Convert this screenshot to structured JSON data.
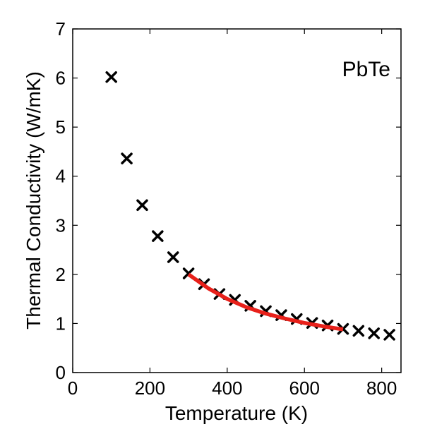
{
  "chart_data": {
    "type": "scatter",
    "title": "",
    "xlabel": "Temperature (K)",
    "ylabel": "Thermal Conductivity (W/mK)",
    "xlim": [
      0,
      850
    ],
    "ylim": [
      0,
      7
    ],
    "x_ticks": [
      0,
      200,
      400,
      600,
      800
    ],
    "y_ticks": [
      0,
      1,
      2,
      3,
      4,
      5,
      6,
      7
    ],
    "grid": false,
    "annotation": "PbTe",
    "series": [
      {
        "type": "scatter",
        "marker": "x",
        "color": "#000000",
        "x": [
          100,
          140,
          180,
          220,
          260,
          300,
          340,
          380,
          420,
          460,
          500,
          540,
          580,
          620,
          660,
          700,
          740,
          780,
          820
        ],
        "y": [
          6.02,
          4.36,
          3.41,
          2.78,
          2.35,
          2.02,
          1.8,
          1.6,
          1.48,
          1.36,
          1.25,
          1.17,
          1.09,
          1.01,
          0.96,
          0.89,
          0.85,
          0.8,
          0.77
        ]
      },
      {
        "type": "line",
        "color": "#e8201a",
        "x": [
          300,
          350,
          400,
          450,
          500,
          550,
          600,
          650,
          700
        ],
        "y": [
          2.0,
          1.72,
          1.5,
          1.33,
          1.2,
          1.1,
          1.01,
          0.94,
          0.88
        ]
      }
    ]
  }
}
